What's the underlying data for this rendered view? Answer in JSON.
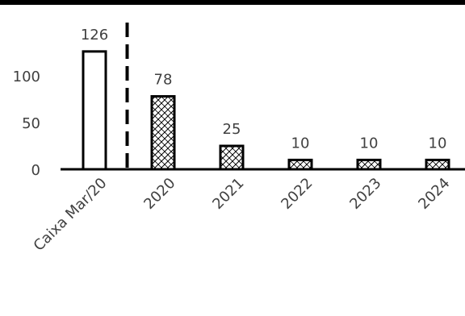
{
  "chart_data": {
    "type": "bar",
    "categories": [
      "Caixa Mar/20",
      "2020",
      "2021",
      "2022",
      "2023",
      "2024"
    ],
    "values": [
      126,
      78,
      25,
      10,
      10,
      10
    ],
    "ylim": [
      0,
      140
    ],
    "yticks": [
      0,
      50,
      100
    ],
    "grid": false,
    "legend": "none",
    "bar_fills": [
      "plain",
      "hatched",
      "hatched",
      "hatched",
      "hatched",
      "hatched"
    ],
    "divider_after_category": "Caixa Mar/20",
    "colors": {
      "bar_stroke": "#000000",
      "bar_fill": "#ffffff",
      "hatch": "#000000",
      "axis": "#000000",
      "text": "#404040",
      "divider": "#000000",
      "top_rule": "#000000"
    }
  }
}
